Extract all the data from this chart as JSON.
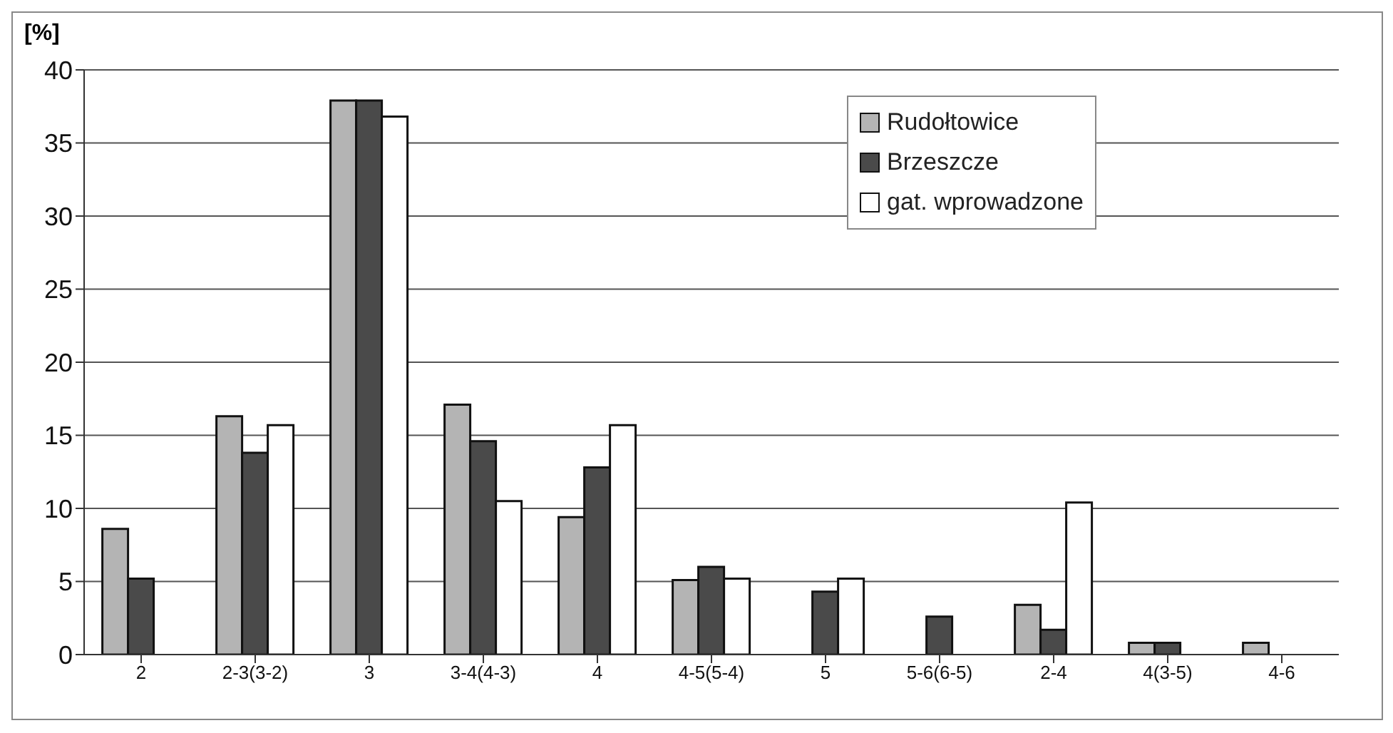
{
  "chart_data": {
    "type": "bar",
    "ylabel": "[%]",
    "categories": [
      "2",
      "2-3(3-2)",
      "3",
      "3-4(4-3)",
      "4",
      "4-5(5-4)",
      "5",
      "5-6(6-5)",
      "2-4",
      "4(3-5)",
      "4-6"
    ],
    "series": [
      {
        "name": "Rudołtowice",
        "color": "#b4b4b4",
        "values": [
          8.6,
          16.3,
          37.9,
          17.1,
          9.4,
          5.1,
          0,
          0,
          3.4,
          0.8,
          0.8
        ]
      },
      {
        "name": "Brzeszcze",
        "color": "#4a4a4a",
        "values": [
          5.2,
          13.8,
          37.9,
          14.6,
          12.8,
          6.0,
          4.3,
          2.6,
          1.7,
          0.8,
          0
        ]
      },
      {
        "name": "gat. wprowadzone",
        "color": "#ffffff",
        "values": [
          0,
          15.7,
          36.8,
          10.5,
          15.7,
          5.2,
          5.2,
          0,
          10.4,
          0,
          0
        ]
      }
    ],
    "ylim": [
      0,
      40
    ],
    "yticks": [
      0,
      5,
      10,
      15,
      20,
      25,
      30,
      35,
      40
    ],
    "grid": "y",
    "legend": "top right"
  }
}
